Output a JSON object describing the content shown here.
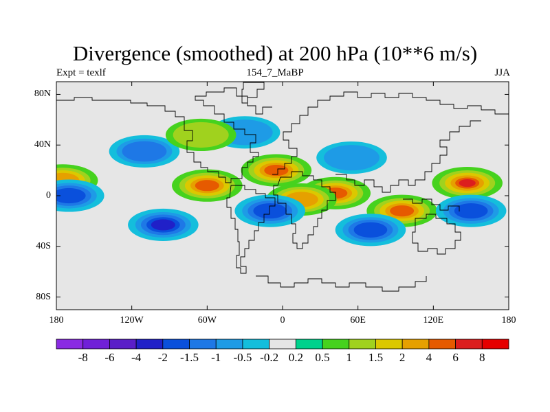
{
  "title": "Divergence (smoothed) at 200 hPa (10**6 m/s)",
  "subtitle_left": "Expt = texlf",
  "subtitle_center": "154_7_MaBP",
  "subtitle_right": "JJA",
  "chart_data": {
    "type": "heatmap",
    "variable": "200 hPa divergence (smoothed)",
    "units": "10**6 m/s",
    "x_axis": {
      "range": [
        -180,
        180
      ],
      "ticks": [
        -180,
        -120,
        -60,
        0,
        60,
        120,
        180
      ],
      "tick_labels": [
        "180",
        "120W",
        "60W",
        "0",
        "60E",
        "120E",
        "180"
      ]
    },
    "y_axis": {
      "range": [
        -90,
        90
      ],
      "ticks": [
        80,
        40,
        0,
        -40,
        -80
      ],
      "tick_labels": [
        "80N",
        "40N",
        "0",
        "40S",
        "80S"
      ]
    },
    "levels": [
      "-8",
      "-6",
      "-4",
      "-2",
      "-1.5",
      "-1",
      "-0.5",
      "-0.2",
      "0.2",
      "0.5",
      "1",
      "1.5",
      "2",
      "4",
      "6",
      "8"
    ],
    "colors": [
      "#8a2be2",
      "#7020d8",
      "#5a1ec8",
      "#2020c8",
      "#0a50dc",
      "#1e78e6",
      "#1e9be6",
      "#14bedc",
      "#e6e6e6",
      "#00d28c",
      "#46d21e",
      "#a0d21e",
      "#dcc800",
      "#e6a000",
      "#e65a00",
      "#dc1e1e",
      "#e60000"
    ],
    "features": [
      {
        "lon": 147,
        "lat": 10,
        "value": 6
      },
      {
        "lon": 95,
        "lat": -12,
        "value": 4
      },
      {
        "lon": -60,
        "lat": 8,
        "value": 4
      },
      {
        "lon": -5,
        "lat": 20,
        "value": 4
      },
      {
        "lon": 42,
        "lat": 2,
        "value": 4
      },
      {
        "lon": 15,
        "lat": -3,
        "value": 2
      },
      {
        "lon": -175,
        "lat": 12,
        "value": 2
      },
      {
        "lon": -95,
        "lat": -23,
        "value": -4
      },
      {
        "lon": 70,
        "lat": -27,
        "value": -2
      },
      {
        "lon": -170,
        "lat": 0,
        "value": -2
      },
      {
        "lon": -10,
        "lat": -12,
        "value": -2
      },
      {
        "lon": 150,
        "lat": -12,
        "value": -2
      },
      {
        "lon": -110,
        "lat": 35,
        "value": -1.5
      },
      {
        "lon": 55,
        "lat": 30,
        "value": -1
      },
      {
        "lon": -30,
        "lat": 50,
        "value": -1
      },
      {
        "lon": -65,
        "lat": 48,
        "value": 1
      }
    ]
  }
}
